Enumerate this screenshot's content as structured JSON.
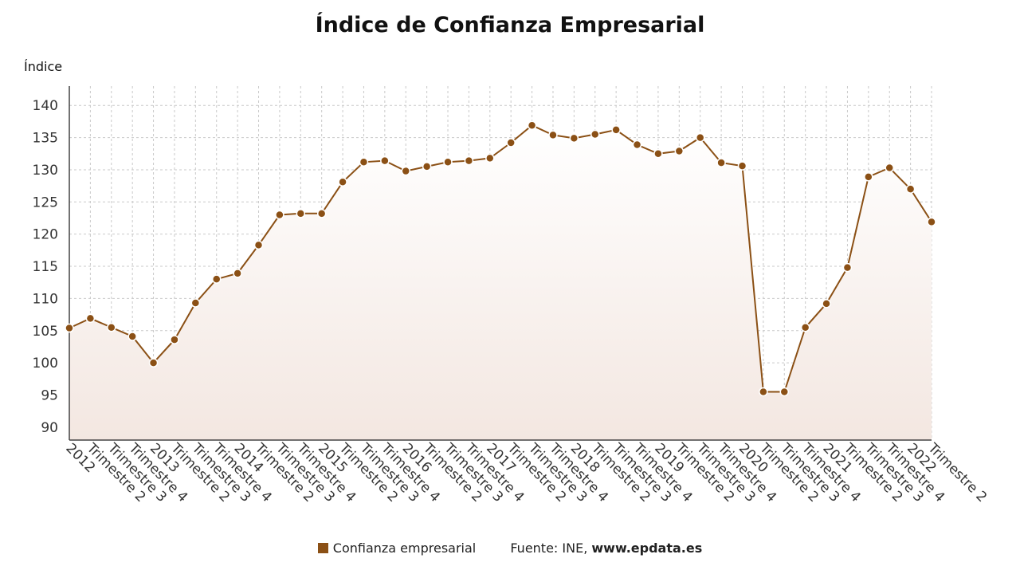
{
  "chart_data": {
    "type": "line",
    "title": "Índice de Confianza Empresarial",
    "ylabel": "Índice",
    "ylim": [
      88,
      143
    ],
    "yticks": [
      90,
      95,
      100,
      105,
      110,
      115,
      120,
      125,
      130,
      135,
      140
    ],
    "grid": true,
    "legend_position": "bottom",
    "categories": [
      "2012",
      "Trimestre 2",
      "Trimestre 3",
      "Trimestre 4",
      "2013",
      "Trimestre 2",
      "Trimestre 3",
      "Trimestre 4",
      "2014",
      "Trimestre 2",
      "Trimestre 3",
      "Trimestre 4",
      "2015",
      "Trimestre 2",
      "Trimestre 3",
      "Trimestre 4",
      "2016",
      "Trimestre 2",
      "Trimestre 3",
      "Trimestre 4",
      "2017",
      "Trimestre 2",
      "Trimestre 3",
      "Trimestre 4",
      "2018",
      "Trimestre 2",
      "Trimestre 3",
      "Trimestre 4",
      "2019",
      "Trimestre 2",
      "Trimestre 3",
      "Trimestre 4",
      "2020",
      "Trimestre 2",
      "Trimestre 3",
      "Trimestre 4",
      "2021",
      "Trimestre 2",
      "Trimestre 3",
      "Trimestre 4",
      "2022",
      "Trimestre 2"
    ],
    "series": [
      {
        "name": "Confianza empresarial",
        "color": "#8B5015",
        "values": [
          105.4,
          106.9,
          105.5,
          104.1,
          100.0,
          103.6,
          109.3,
          113.0,
          113.9,
          118.3,
          123.0,
          123.2,
          123.2,
          128.1,
          131.2,
          131.4,
          129.8,
          130.5,
          131.2,
          131.4,
          131.8,
          134.2,
          136.9,
          135.4,
          134.9,
          135.5,
          136.2,
          133.9,
          132.5,
          132.9,
          135.0,
          131.1,
          130.6,
          95.5,
          95.5,
          105.5,
          109.2,
          114.8,
          128.9,
          130.3,
          127.0,
          121.9
        ]
      }
    ]
  },
  "legend": {
    "series_label": "Confianza empresarial",
    "source_prefix": "Fuente: INE,",
    "source_site": "www.epdata.es"
  }
}
